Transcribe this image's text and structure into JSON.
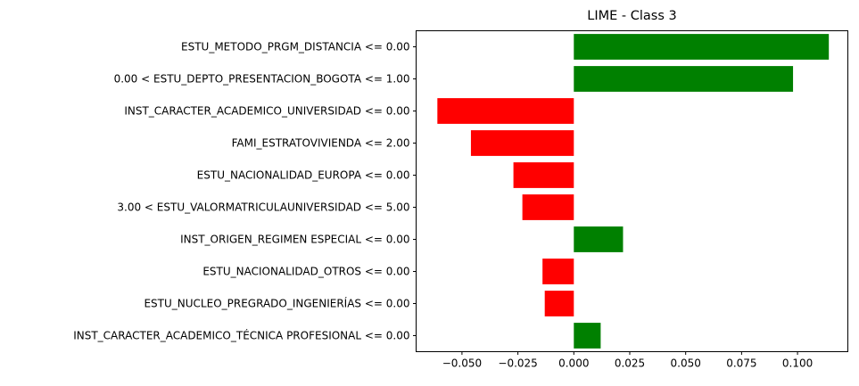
{
  "chart_data": {
    "type": "bar",
    "orientation": "horizontal",
    "title": "LIME - Class 3",
    "xlabel": "",
    "ylabel": "",
    "categories": [
      "ESTU_METODO_PRGM_DISTANCIA <= 0.00",
      "0.00 < ESTU_DEPTO_PRESENTACION_BOGOTA <= 1.00",
      "INST_CARACTER_ACADEMICO_UNIVERSIDAD <= 0.00",
      "FAMI_ESTRATOVIVIENDA <= 2.00",
      "ESTU_NACIONALIDAD_EUROPA <= 0.00",
      "3.00 < ESTU_VALORMATRICULAUNIVERSIDAD <= 5.00",
      "INST_ORIGEN_REGIMEN ESPECIAL <= 0.00",
      "ESTU_NACIONALIDAD_OTROS <= 0.00",
      "ESTU_NUCLEO_PREGRADO_INGENIERÍAS <= 0.00",
      "INST_CARACTER_ACADEMICO_TÉCNICA PROFESIONAL <= 0.00"
    ],
    "values": [
      0.114,
      0.098,
      -0.061,
      -0.046,
      -0.027,
      -0.023,
      0.022,
      -0.014,
      -0.013,
      0.012
    ],
    "xlim": [
      -0.0705,
      0.1225
    ],
    "xticks": [
      -0.05,
      -0.025,
      0.0,
      0.025,
      0.05,
      0.075,
      0.1
    ],
    "xtick_labels": [
      "−0.050",
      "−0.025",
      "0.000",
      "0.025",
      "0.050",
      "0.075",
      "0.100"
    ],
    "colors": {
      "positive": "#008000",
      "negative": "#ff0000"
    },
    "grid": false,
    "legend": "none"
  }
}
